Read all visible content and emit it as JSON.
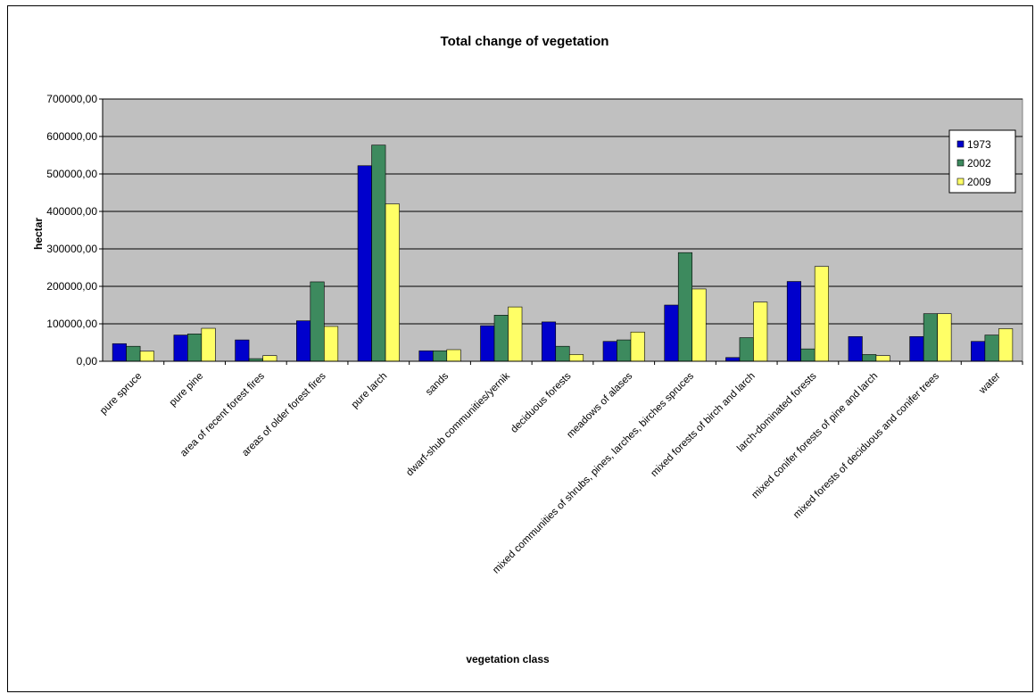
{
  "chart_data": {
    "type": "bar",
    "title": "Total change of vegetation",
    "xlabel": "vegetation class",
    "ylabel": "hectar",
    "ylim": [
      0,
      700000
    ],
    "ytick_step": 100000,
    "ytick_labels": [
      "0,00",
      "100000,00",
      "200000,00",
      "300000,00",
      "400000,00",
      "500000,00",
      "600000,00",
      "700000,00"
    ],
    "grid": true,
    "legend_position": "top-right",
    "categories": [
      "pure spruce",
      "pure pine",
      "area of recent forest fires",
      "areas of older forest fires",
      "pure larch",
      "sands",
      "dwarf-shub communities/yernik",
      "deciduous forests",
      "meadows of alases",
      "mixed communities of shrubs, pines, larches, birches spruces",
      "mixed forests of birch and larch",
      "larch-dominated forests",
      "mixed conifer forests of pine and larch",
      "mixed forests of deciduous and conifer trees",
      "water"
    ],
    "series": [
      {
        "name": "1973",
        "color": "#0000cc",
        "values": [
          47000,
          70000,
          57000,
          108000,
          522000,
          28000,
          95000,
          105000,
          53000,
          150000,
          10000,
          213000,
          66000,
          66000,
          53000
        ]
      },
      {
        "name": "2002",
        "color": "#3d8a5e",
        "values": [
          40000,
          73000,
          7000,
          212000,
          577000,
          28000,
          123000,
          40000,
          57000,
          290000,
          63000,
          33000,
          18000,
          127000,
          70000
        ]
      },
      {
        "name": "2009",
        "color": "#ffff66",
        "values": [
          27000,
          88000,
          15000,
          93000,
          420000,
          31000,
          145000,
          18000,
          78000,
          193000,
          158000,
          253000,
          15000,
          127000,
          87000
        ]
      }
    ],
    "plot_background": "#c0c0c0"
  }
}
